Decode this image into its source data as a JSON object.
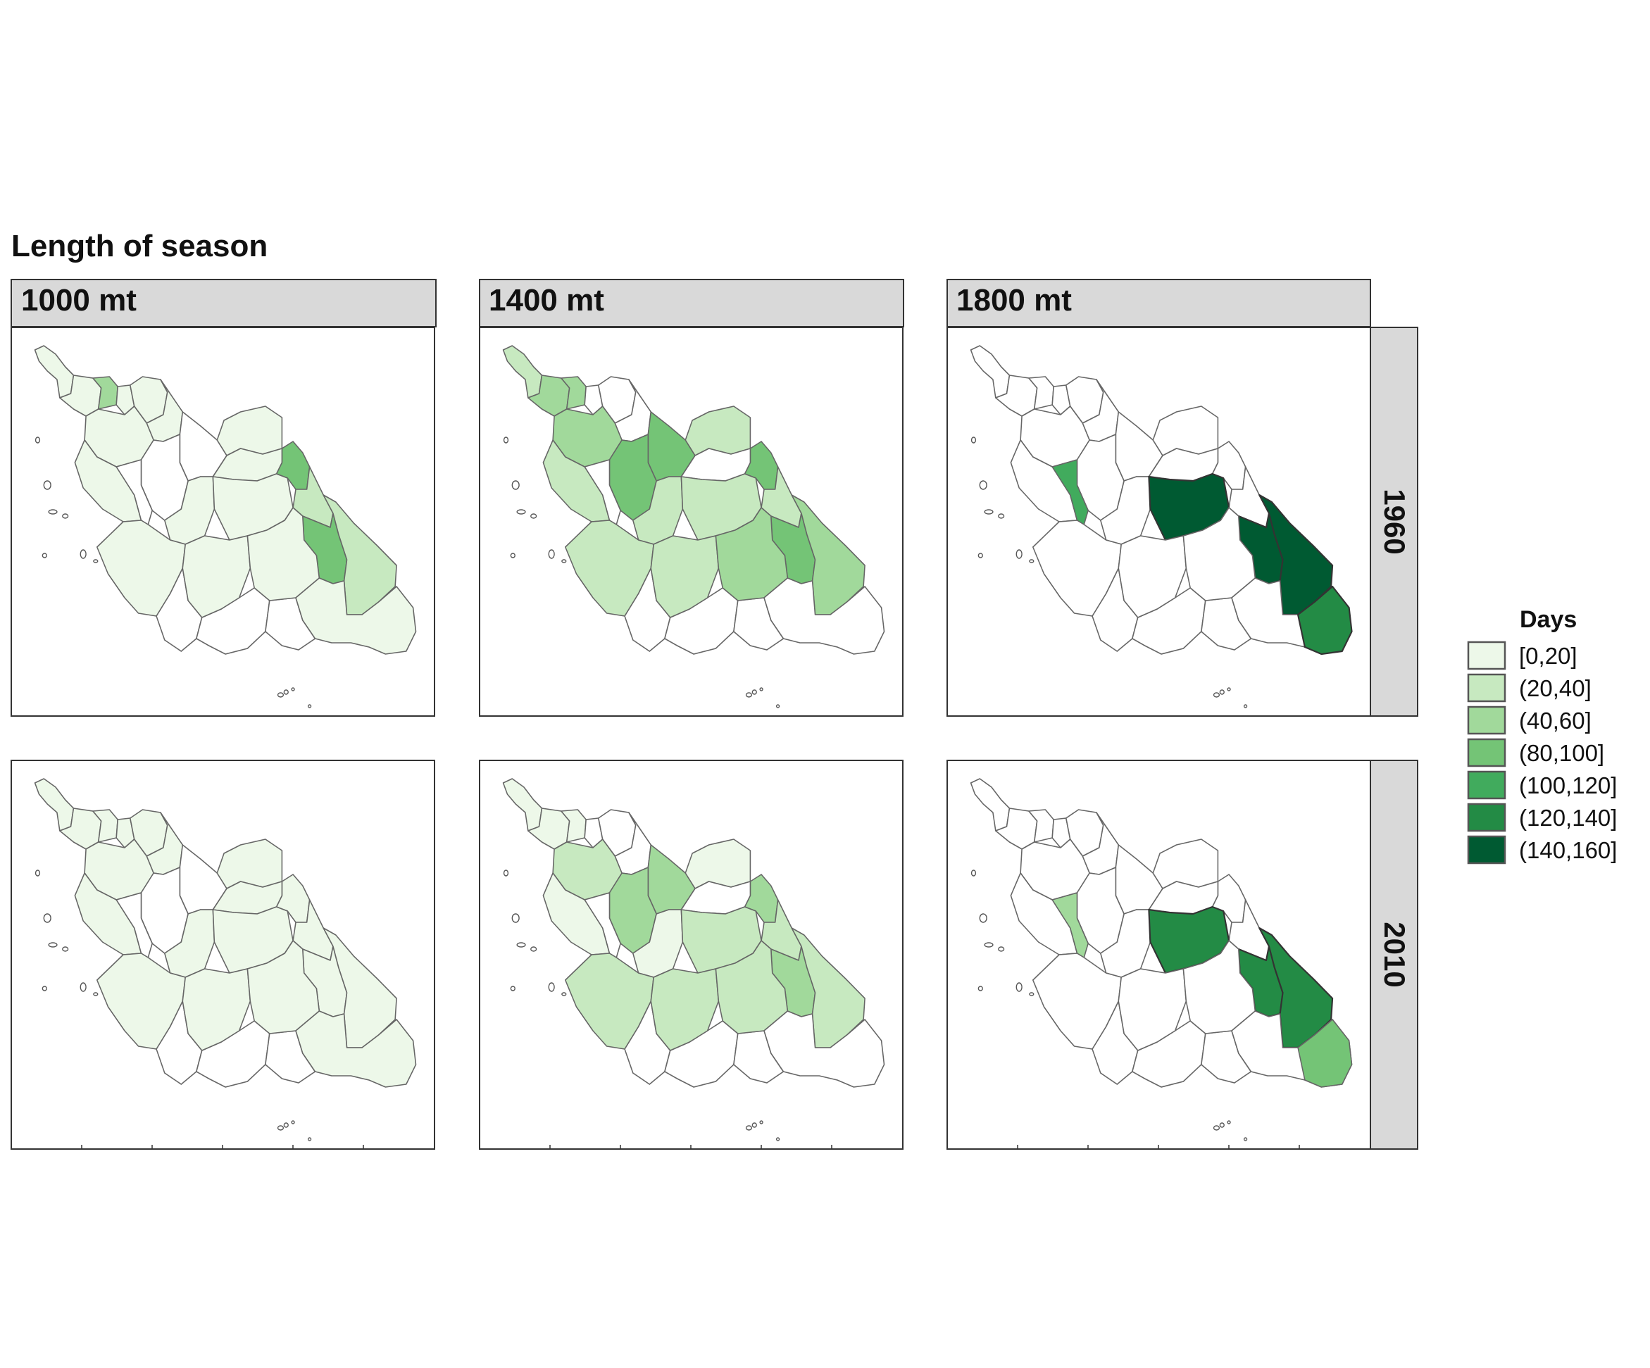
{
  "title": "Length of season",
  "columns": [
    "1000 mt",
    "1400 mt",
    "1800 mt"
  ],
  "rows": [
    "1960",
    "2010"
  ],
  "legend": {
    "title": "Days",
    "classes": [
      {
        "label": "[0,20]",
        "color": "#edf8e9"
      },
      {
        "label": "(20,40]",
        "color": "#c7e9c0"
      },
      {
        "label": "(40,60]",
        "color": "#a1d99b"
      },
      {
        "label": "(80,100]",
        "color": "#74c476"
      },
      {
        "label": "(100,120]",
        "color": "#41ab5d"
      },
      {
        "label": "(120,140]",
        "color": "#238b45"
      },
      {
        "label": "(140,160]",
        "color": "#005a32"
      }
    ],
    "na_color": "#ffffff"
  },
  "chart_data": {
    "type": "choropleth",
    "value_name": "Days",
    "note_classes": "class index refers to legend.classes (0..6); -1 = no value (white)",
    "panels": [
      {
        "column": "1000 mt",
        "row": "1960",
        "class_by_district": {
          "A": 0,
          "B": 0,
          "C": 2,
          "D": 0,
          "E": 0,
          "F": 0,
          "G": 0,
          "H": -1,
          "I": -1,
          "J": 0,
          "K": 3,
          "L": 0,
          "M": 0,
          "N": 1,
          "O": -1,
          "P": 0,
          "Q": 0,
          "R": 3,
          "S": 1,
          "T": 0,
          "U": 0,
          "V": 0,
          "W": 0
        }
      },
      {
        "column": "1400 mt",
        "row": "1960",
        "class_by_district": {
          "A": 1,
          "B": 2,
          "C": 2,
          "D": -1,
          "E": -1,
          "F": 2,
          "G": -1,
          "H": 3,
          "I": 3,
          "J": 1,
          "K": 3,
          "L": -1,
          "M": 1,
          "N": 1,
          "O": -1,
          "P": 1,
          "Q": 1,
          "R": 3,
          "S": 2,
          "T": 1,
          "U": 1,
          "V": 2,
          "W": -1
        }
      },
      {
        "column": "1800 mt",
        "row": "1960",
        "class_by_district": {
          "A": -1,
          "B": -1,
          "C": -1,
          "D": -1,
          "E": -1,
          "F": -1,
          "G": -1,
          "H": -1,
          "I": -1,
          "J": -1,
          "K": -1,
          "L": -1,
          "M": -1,
          "N": -1,
          "O": 4,
          "P": -1,
          "Q": 6,
          "R": 6,
          "S": 6,
          "T": -1,
          "U": -1,
          "V": -1,
          "W": -1,
          "X": 5
        }
      },
      {
        "column": "1000 mt",
        "row": "2010",
        "class_by_district": {
          "A": 0,
          "B": 0,
          "C": 0,
          "D": 0,
          "E": 0,
          "F": 0,
          "G": 0,
          "H": -1,
          "I": -1,
          "J": 0,
          "K": 0,
          "L": 0,
          "M": 0,
          "N": 0,
          "O": -1,
          "P": 0,
          "Q": 0,
          "R": 0,
          "S": 0,
          "T": 0,
          "U": 0,
          "V": 0,
          "W": 0
        }
      },
      {
        "column": "1400 mt",
        "row": "2010",
        "class_by_district": {
          "A": 0,
          "B": 0,
          "C": 0,
          "D": -1,
          "E": -1,
          "F": 1,
          "G": -1,
          "H": 2,
          "I": 2,
          "J": 0,
          "K": 2,
          "L": -1,
          "M": 0,
          "N": 1,
          "O": -1,
          "P": 0,
          "Q": 1,
          "R": 2,
          "S": 1,
          "T": 1,
          "U": 1,
          "V": 1,
          "W": -1
        }
      },
      {
        "column": "1800 mt",
        "row": "2010",
        "class_by_district": {
          "A": -1,
          "B": -1,
          "C": -1,
          "D": -1,
          "E": -1,
          "F": -1,
          "G": -1,
          "H": -1,
          "I": -1,
          "J": -1,
          "K": -1,
          "L": -1,
          "M": -1,
          "N": -1,
          "O": 2,
          "P": -1,
          "Q": 5,
          "R": 5,
          "S": 5,
          "T": -1,
          "U": -1,
          "V": -1,
          "W": -1,
          "X": 3
        }
      }
    ]
  }
}
